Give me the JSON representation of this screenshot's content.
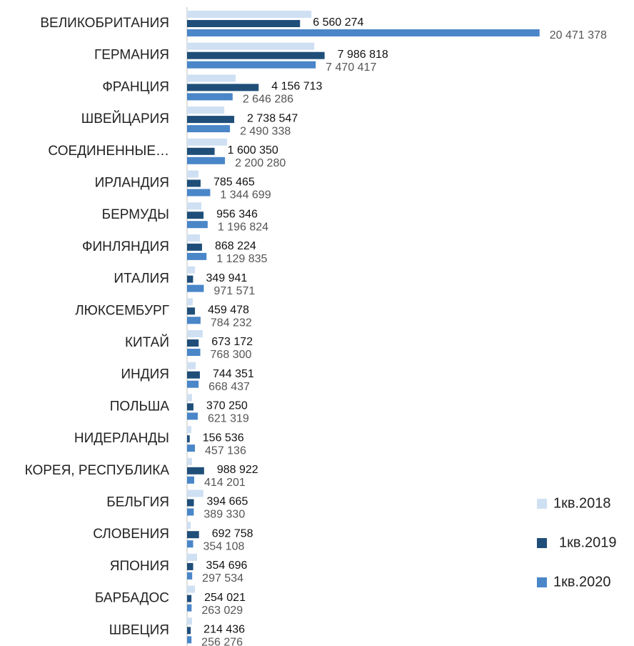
{
  "chart_data": {
    "type": "hbar",
    "categories": [
      "ВЕЛИКОБРИТАНИЯ",
      "ГЕРМАНИЯ",
      "ФРАНЦИЯ",
      "ШВЕЙЦАРИЯ",
      "СОЕДИНЕННЫЕ…",
      "ИРЛАНДИЯ",
      "БЕРМУДЫ",
      "ФИНЛЯНДИЯ",
      "ИТАЛИЯ",
      "ЛЮКСЕМБУРГ",
      "КИТАЙ",
      "ИНДИЯ",
      "ПОЛЬША",
      "НИДЕРЛАНДЫ",
      "КОРЕЯ, РЕСПУБЛИКА",
      "БЕЛЬГИЯ",
      "СЛОВЕНИЯ",
      "ЯПОНИЯ",
      "БАРБАДОС",
      "ШВЕЦИЯ"
    ],
    "series": [
      {
        "name": "1кв.2018",
        "color": "#cfe0f3",
        "values": [
          7220000,
          7390000,
          2820000,
          2160000,
          2320000,
          660000,
          830000,
          750000,
          460000,
          330000,
          910000,
          500000,
          290000,
          250000,
          290000,
          950000,
          210000,
          580000,
          460000,
          290000
        ]
      },
      {
        "name": "1кв.2019",
        "color": "#1f4e79",
        "values": [
          6560274,
          7986818,
          4156713,
          2738547,
          1600350,
          785465,
          956346,
          868224,
          349941,
          459478,
          673172,
          744351,
          370250,
          156536,
          988922,
          394665,
          692758,
          354696,
          254021,
          214436
        ],
        "value_labels": [
          "6 560 274",
          "7 986 818",
          "4 156 713",
          "2 738 547",
          "1 600 350",
          "785 465",
          "956 346",
          "868 224",
          "349 941",
          "459 478",
          "673 172",
          "744 351",
          "370 250",
          "156 536",
          "988 922",
          "394 665",
          "692 758",
          "354 696",
          "254 021",
          "214 436"
        ]
      },
      {
        "name": "1кв.2020",
        "color": "#4a86c8",
        "values": [
          20471378,
          7470417,
          2646286,
          2490338,
          2200280,
          1344699,
          1196824,
          1129835,
          971571,
          784232,
          768300,
          668437,
          621319,
          457136,
          414201,
          389330,
          354108,
          297534,
          263029,
          256276
        ],
        "value_labels": [
          "20 471 378",
          "7 470 417",
          "2 646 286",
          "2 490 338",
          "2 200 280",
          "1 344 699",
          "1 196 824",
          "1 129 835",
          "971 571",
          "784 232",
          "768 300",
          "668 437",
          "621 319",
          "457 136",
          "414 201",
          "389 330",
          "354 108",
          "297 534",
          "263 029",
          "256 276"
        ]
      }
    ],
    "xlim": [
      0,
      25000000
    ]
  }
}
